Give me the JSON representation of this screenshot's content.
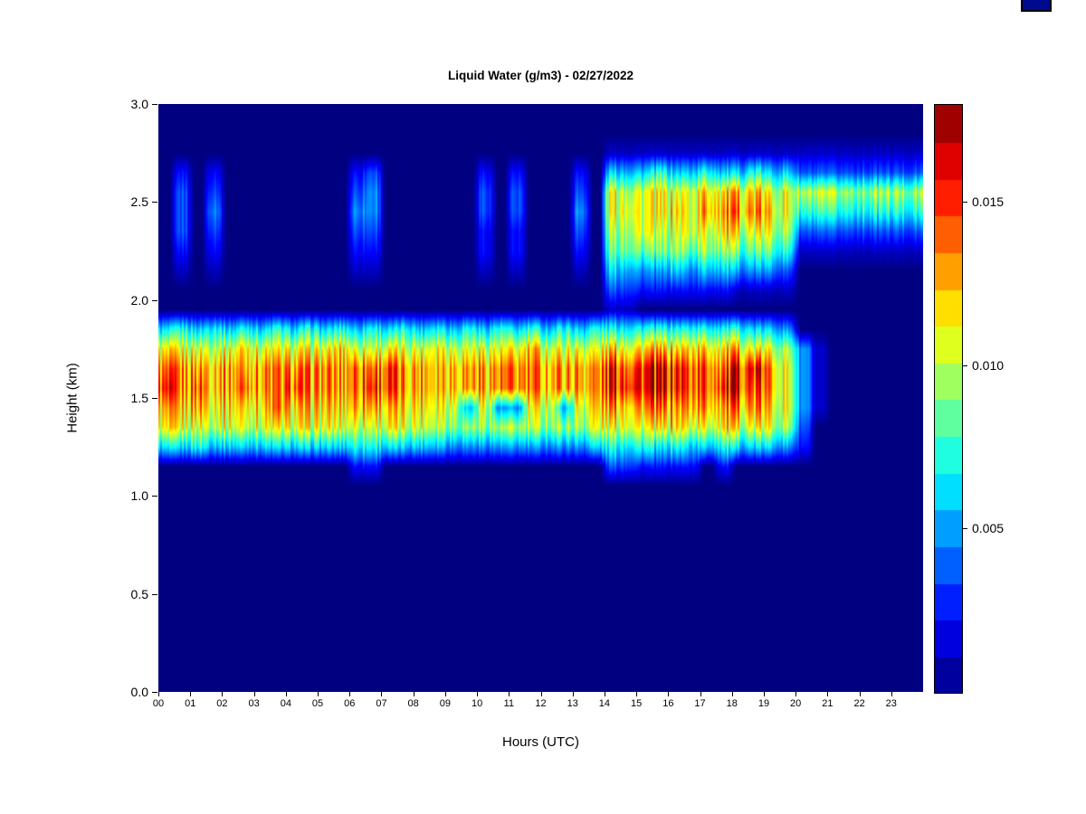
{
  "figure": {
    "title": "Liquid Water (g/m3) - 02/27/2022",
    "xlabel": "Hours (UTC)",
    "ylabel": "Height (km)"
  },
  "axes": {
    "x_ticks": [
      "00",
      "01",
      "02",
      "03",
      "04",
      "05",
      "06",
      "07",
      "08",
      "09",
      "10",
      "11",
      "12",
      "13",
      "14",
      "15",
      "16",
      "17",
      "18",
      "19",
      "20",
      "21",
      "22",
      "23"
    ],
    "y_ticks": [
      "0.0",
      "0.5",
      "1.0",
      "1.5",
      "2.0",
      "2.5",
      "3.0"
    ]
  },
  "colorbar": {
    "tick_labels": [
      "0.005",
      "0.010",
      "0.015"
    ],
    "tick_values": [
      0.005,
      0.01,
      0.015
    ],
    "vmin": 0,
    "vmax": 0.018,
    "segments": 16,
    "colormap": "jet",
    "background_color": "#000080"
  },
  "chart_data": {
    "type": "heatmap",
    "title": "Liquid Water (g/m3) - 02/27/2022",
    "xlabel": "Hours (UTC)",
    "ylabel": "Height (km)",
    "value_units": "g/m3",
    "x_range_hours": [
      0,
      24
    ],
    "y_range_km": [
      0,
      3
    ],
    "colormap": "jet",
    "legend_position": "right-colorbar",
    "features": [
      "Persistent stratus layer between ~1.25 and ~1.85 km from 00 to ~20 UTC, liquid water ~0.012-0.017 g/m3, strongest (red) near 06-07 and 14-19 UTC",
      "Upper cloud layer between ~2.0 and ~2.7 km starting ~14 UTC, yellow-orange core ~2.3-2.6 km until ~20 UTC, thinning to a cyan/blue band with yellow-green center near 2.5 km through 24 UTC",
      "Sparse thin vertical virga streaks between 2.0 and 2.7 km near 00-02, 06-07, 10, 11 and 13 UTC"
    ],
    "grid": {
      "cols": 48,
      "rows": 30,
      "col_hour_step": 0.5,
      "row_km_step": 0.1,
      "rows_order": "top-to-bottom (first row = 2.9-3.0 km, last row = 0.0-0.1 km)",
      "encoding": "each char is a hex digit 0-15; value = digit/15 * 0.018 g/m3",
      "values": [
        "000000000000000000000000000000000000000000000000",
        "000000000000000000000000000000000000000000000000",
        "000000000000000000000000000011111111111111111111",
        "020200000000230000002020002055565565565533333333",
        "0303000000003400000030300030999999aaaa9988888888",
        "03040000000044000000303000409a99a9bbbba966666666",
        "03030000000033000000202000308998999a999833333333",
        "020200000000220000002020002078778788777611111111",
        "010100000000110000001010001055445455444300000000",
        "000000000000000000000000000033222222111100000000",
        "000000000000000000000000000011000000000000000000",
        "565656565656565656565656565666666666655400000000",
        "99999a99999a99999a99999a9999aaaaaaaaa99841000000",
        "bbbbbbbbbbbbcccbbbbbbbbbbbbbdddddcccddb941000000",
        "cbcbbcbbcbbbcdcbbbbbbbbbbbbbdedddccddcb941000000",
        "aabaaaabaaaabbaaaa959449959abbbbbbbbbba941000000",
        "99999999999999999988888888899a99a99a999830000000",
        "556555555555665555444444444566656556555420000000",
        "000000000000220000000000000033222202000000000000",
        "000000000000000000000000000000000000000000000000",
        "000000000000000000000000000000000000000000000000",
        "000000000000000000000000000000000000000000000000",
        "000000000000000000000000000000000000000000000000",
        "000000000000000000000000000000000000000000000000",
        "000000000000000000000000000000000000000000000000",
        "000000000000000000000000000000000000000000000000",
        "000000000000000000000000000000000000000000000000",
        "000000000000000000000000000000000000000000000000",
        "000000000000000000000000000000000000000000000000",
        "000000000000000000000000000000000000000000000000"
      ]
    }
  }
}
